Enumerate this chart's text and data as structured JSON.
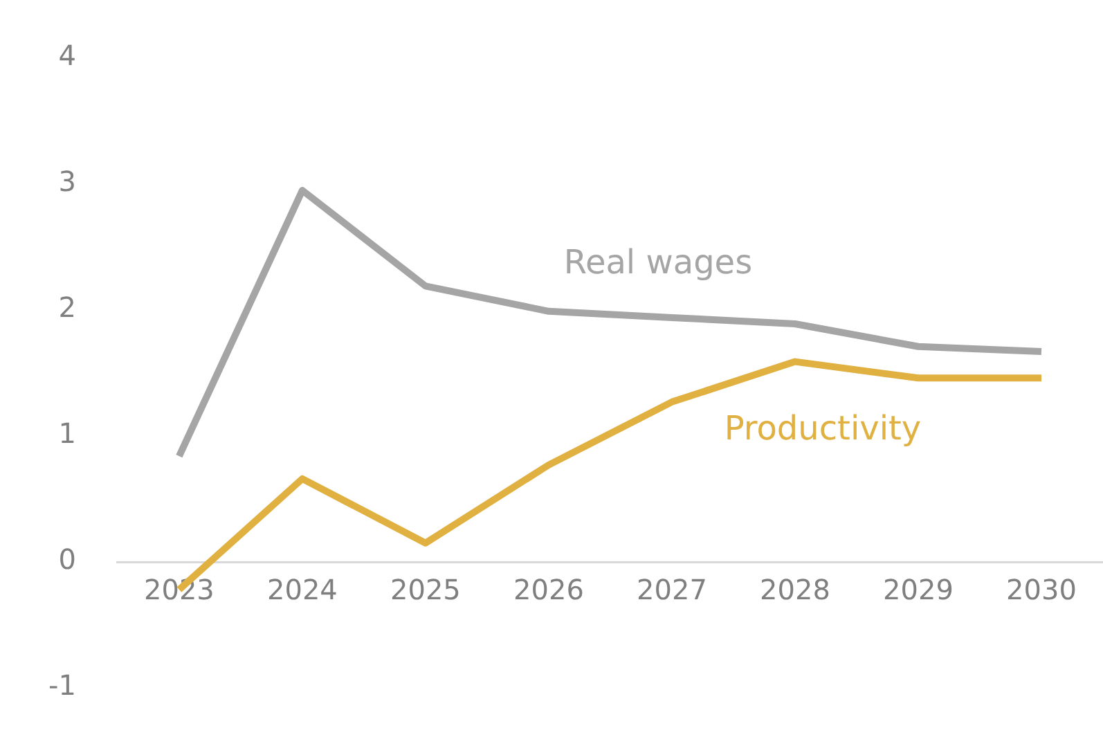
{
  "chart_data": {
    "type": "line",
    "categories": [
      "2023",
      "2024",
      "2025",
      "2026",
      "2027",
      "2028",
      "2029",
      "2030"
    ],
    "series": [
      {
        "name": "Real wages",
        "color": "#a5a5a5",
        "values": [
          0.84,
          2.95,
          2.19,
          1.99,
          1.94,
          1.89,
          1.71,
          1.67
        ]
      },
      {
        "name": "Productivity",
        "color": "#e0b040",
        "values": [
          -0.22,
          0.66,
          0.15,
          0.77,
          1.27,
          1.59,
          1.46,
          1.46
        ]
      }
    ],
    "ylim": [
      -1,
      4
    ],
    "yticks": [
      -1,
      0,
      1,
      2,
      3,
      4
    ],
    "grid": false,
    "legend": false,
    "marker": "none",
    "line_style": "solid"
  }
}
